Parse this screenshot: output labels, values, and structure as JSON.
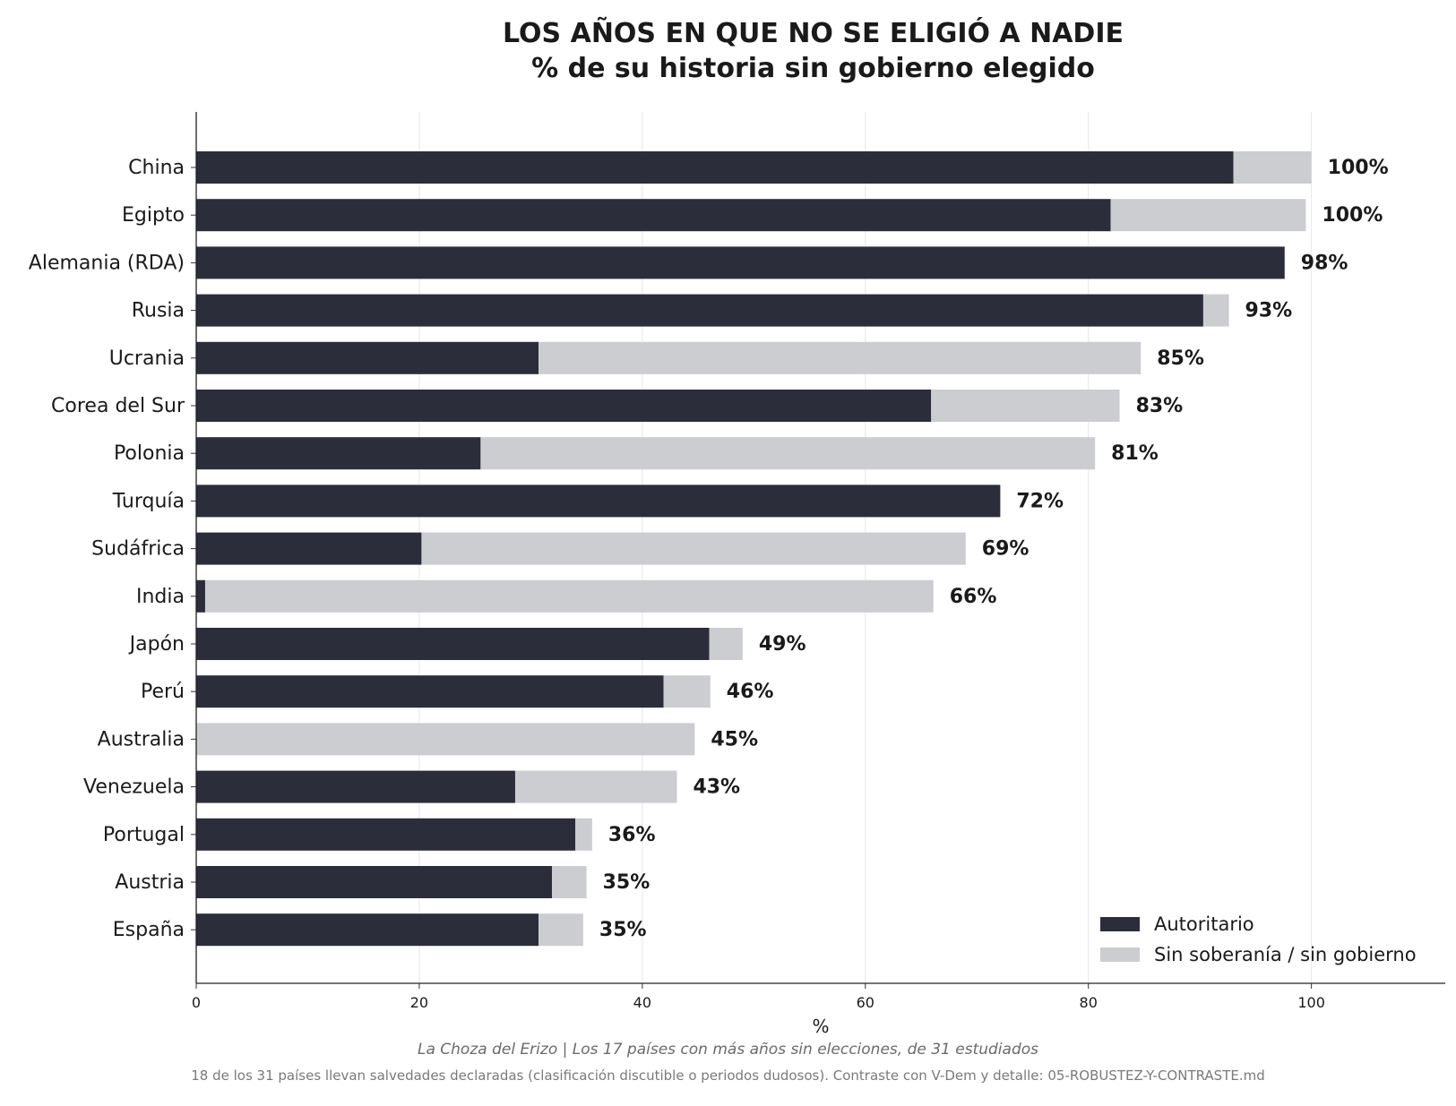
{
  "chart_data": {
    "type": "bar",
    "orientation": "horizontal",
    "stacked": true,
    "title": "LOS AÑOS EN QUE NO SE ELIGIÓ A NADIE",
    "subtitle": "% de su historia sin gobierno elegido",
    "xlabel": "%",
    "ylabel": "",
    "xlim": [
      0,
      112
    ],
    "xticks": [
      "0",
      "20",
      "40",
      "60",
      "80",
      "100"
    ],
    "grid": "vertical",
    "legend_position": "bottom-right",
    "categories": [
      "China",
      "Egipto",
      "Alemania (RDA)",
      "Rusia",
      "Ucrania",
      "Corea del Sur",
      "Polonia",
      "Turquía",
      "Sudáfrica",
      "India",
      "Japón",
      "Perú",
      "Australia",
      "Venezuela",
      "Portugal",
      "Austria",
      "España"
    ],
    "series": [
      {
        "name": "Autoritario",
        "color": "#2b2d3a",
        "values": [
          93.0,
          82.0,
          97.6,
          90.3,
          30.7,
          65.9,
          25.5,
          72.1,
          20.2,
          0.8,
          46.0,
          41.9,
          0.0,
          28.6,
          34.0,
          31.9,
          30.7
        ]
      },
      {
        "name": "Sin soberanía / sin gobierno",
        "color": "#cccdd1",
        "values": [
          7.0,
          17.5,
          0.0,
          2.3,
          54.0,
          16.9,
          55.1,
          0.0,
          48.8,
          65.3,
          3.0,
          4.2,
          44.7,
          14.5,
          1.5,
          3.1,
          4.0
        ]
      }
    ],
    "bar_labels": [
      "100%",
      "100%",
      "98%",
      "93%",
      "85%",
      "83%",
      "81%",
      "72%",
      "69%",
      "66%",
      "49%",
      "46%",
      "45%",
      "43%",
      "36%",
      "35%",
      "35%"
    ]
  },
  "footer": {
    "source": "La Choza del Erizo  |  Los 17 países con más años sin elecciones, de 31 estudiados",
    "note": "18 de los 31 países llevan salvedades declaradas (clasificación discutible o periodos dudosos). Contraste con V-Dem y detalle: 05-ROBUSTEZ-Y-CONTRASTE.md"
  }
}
